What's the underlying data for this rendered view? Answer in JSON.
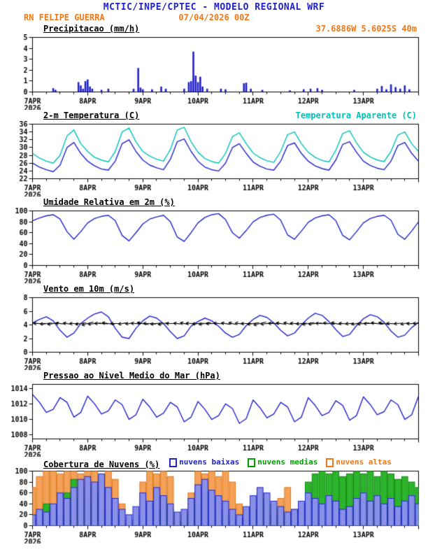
{
  "header": {
    "title": "MCTIC/INPE/CPTEC - MODELO REGIONAL WRF",
    "station": "RN FELIPE GUERRA",
    "datetime": "07/04/2026 00Z",
    "location": "37.6886W 5.6025S 40m"
  },
  "colors": {
    "title_blue": "#2020cc",
    "orange": "#f07818",
    "blue": "#2222cc",
    "cyan": "#00c3b6",
    "green": "#00a000",
    "cloud_low_fill": "#8890e8",
    "cloud_low_edge": "#2228c8",
    "cloud_mid_fill": "#2db42d",
    "cloud_mid_edge": "#0a8a0a",
    "cloud_high_fill": "#f4a259",
    "cloud_high_edge": "#e07818"
  },
  "x_axis": {
    "hours_total": 168,
    "minor_tick_hours": 6,
    "day_labels": [
      "7APR",
      "8APR",
      "9APR",
      "10APR",
      "11APR",
      "12APR",
      "13APR"
    ],
    "year_label": "2026"
  },
  "chart_data": [
    {
      "id": "precip",
      "type": "bar",
      "title": "Precipitacao (mm/h)",
      "ylim": [
        0,
        5
      ],
      "yticks": [
        0,
        1,
        2,
        3,
        4,
        5
      ],
      "points": [
        [
          9,
          0.35
        ],
        [
          10,
          0.2
        ],
        [
          20,
          0.9
        ],
        [
          21,
          0.6
        ],
        [
          22,
          0.3
        ],
        [
          23,
          1.0
        ],
        [
          24,
          1.15
        ],
        [
          25,
          0.5
        ],
        [
          26,
          0.3
        ],
        [
          30,
          0.2
        ],
        [
          33,
          0.3
        ],
        [
          44,
          0.3
        ],
        [
          46,
          2.2
        ],
        [
          47,
          0.4
        ],
        [
          48,
          0.25
        ],
        [
          52,
          0.25
        ],
        [
          56,
          0.5
        ],
        [
          58,
          0.3
        ],
        [
          66,
          0.3
        ],
        [
          68,
          0.9
        ],
        [
          69,
          1.0
        ],
        [
          70,
          3.7
        ],
        [
          71,
          1.5
        ],
        [
          72,
          0.9
        ],
        [
          73,
          1.4
        ],
        [
          74,
          0.5
        ],
        [
          76,
          0.3
        ],
        [
          82,
          0.3
        ],
        [
          84,
          0.25
        ],
        [
          92,
          0.8
        ],
        [
          93,
          0.85
        ],
        [
          95,
          0.3
        ],
        [
          100,
          0.2
        ],
        [
          112,
          0.15
        ],
        [
          118,
          0.25
        ],
        [
          121,
          0.3
        ],
        [
          124,
          0.35
        ],
        [
          126,
          0.2
        ],
        [
          140,
          0.2
        ],
        [
          150,
          0.3
        ],
        [
          152,
          0.55
        ],
        [
          154,
          0.25
        ],
        [
          156,
          0.7
        ],
        [
          158,
          0.45
        ],
        [
          160,
          0.3
        ],
        [
          162,
          0.6
        ],
        [
          164,
          0.25
        ]
      ]
    },
    {
      "id": "temp",
      "type": "line",
      "title": "2-m Temperatura (C)",
      "legend_right": "Temperatura Aparente (C)",
      "ylim": [
        22,
        36
      ],
      "yticks": [
        22,
        24,
        26,
        28,
        30,
        32,
        34,
        36
      ],
      "step_hours": 3,
      "series": [
        {
          "name": "Temperatura Aparente (C)",
          "color_key": "cyan",
          "values": [
            28.5,
            27.3,
            26.5,
            26,
            28,
            33,
            34.5,
            31,
            29,
            27.5,
            26.8,
            26.3,
            29,
            34,
            35,
            31.5,
            29,
            27.8,
            27,
            26.5,
            29.5,
            34.5,
            35.2,
            31.5,
            28.8,
            27.2,
            26.4,
            26,
            28.5,
            32.8,
            33.8,
            31,
            28.6,
            27.4,
            26.6,
            26.2,
            29,
            33.3,
            34,
            31,
            28.8,
            27.5,
            26.7,
            26.3,
            29.3,
            33.6,
            34.3,
            31.2,
            28.8,
            27.6,
            26.8,
            26.4,
            29,
            33.2,
            34,
            31,
            29
          ]
        },
        {
          "name": "2-m Temperatura (C)",
          "color_key": "blue",
          "values": [
            26,
            25,
            24.3,
            23.8,
            25.5,
            30,
            31.3,
            28.5,
            26.5,
            25.3,
            24.5,
            24.2,
            26.5,
            31,
            32,
            29,
            26.8,
            25.5,
            24.8,
            24.3,
            27,
            31.5,
            32.2,
            29,
            26.5,
            25,
            24.3,
            24,
            26,
            30,
            31,
            28.5,
            26.3,
            25.2,
            24.5,
            24.2,
            26.5,
            30.5,
            31.2,
            28.5,
            26.5,
            25.3,
            24.6,
            24.2,
            26.8,
            30.8,
            31.5,
            28.8,
            26.5,
            25.4,
            24.7,
            24.3,
            26.5,
            30.5,
            31.3,
            28.5,
            26.5
          ]
        }
      ]
    },
    {
      "id": "rh",
      "type": "line",
      "title": "Umidade Relativa em 2m (%)",
      "ylim": [
        0,
        100
      ],
      "yticks": [
        0,
        20,
        40,
        60,
        80,
        100
      ],
      "step_hours": 3,
      "series": [
        {
          "name": "Umidade Relativa",
          "color_key": "blue",
          "values": [
            82,
            87,
            91,
            93,
            85,
            62,
            48,
            62,
            78,
            86,
            90,
            92,
            82,
            55,
            45,
            60,
            76,
            85,
            89,
            92,
            80,
            52,
            44,
            60,
            78,
            88,
            93,
            95,
            84,
            60,
            50,
            64,
            80,
            88,
            92,
            94,
            83,
            56,
            48,
            63,
            79,
            87,
            91,
            93,
            82,
            55,
            47,
            62,
            78,
            86,
            90,
            92,
            83,
            57,
            48,
            63,
            80
          ]
        }
      ]
    },
    {
      "id": "wind",
      "type": "line+arrows",
      "title": "Vento em 10m (m/s)",
      "ylim": [
        0,
        8
      ],
      "yticks": [
        0,
        2,
        4,
        6,
        8
      ],
      "step_hours": 3,
      "arrow_y": 4.2,
      "arrow_dirs": [
        182,
        178,
        185,
        190,
        175,
        170,
        180,
        188,
        195,
        185,
        178,
        172,
        180,
        190,
        185,
        175,
        170,
        178,
        186,
        192,
        180,
        174,
        168,
        176,
        184,
        190,
        182,
        176,
        170,
        165,
        172,
        180,
        188,
        194,
        186,
        178,
        172,
        168,
        175,
        183,
        190,
        185,
        179,
        173,
        169,
        176,
        184,
        191,
        186,
        180,
        174,
        170,
        177,
        185,
        192,
        183,
        178
      ],
      "series": [
        {
          "name": "Vento 10m",
          "color_key": "blue",
          "values": [
            4.3,
            4.8,
            5.2,
            4.6,
            3.2,
            2.2,
            2.8,
            4.2,
            5.0,
            5.6,
            5.9,
            5.2,
            3.5,
            2.2,
            2.0,
            3.5,
            4.6,
            5.3,
            5.0,
            4.2,
            3.0,
            2.0,
            2.4,
            3.8,
            4.5,
            5.0,
            4.6,
            3.8,
            2.8,
            2.2,
            2.6,
            3.9,
            4.8,
            5.4,
            5.1,
            4.3,
            3.2,
            2.4,
            2.8,
            4.0,
            5.0,
            5.7,
            5.4,
            4.5,
            3.3,
            2.3,
            2.6,
            3.9,
            4.9,
            5.5,
            5.2,
            4.4,
            3.1,
            2.2,
            2.5,
            3.6,
            4.4
          ]
        }
      ]
    },
    {
      "id": "pressure",
      "type": "line",
      "title": "Pressao ao Nivel Medio do Mar (hPa)",
      "ylim": [
        1007.5,
        1014.5
      ],
      "yticks": [
        1008,
        1010,
        1012,
        1014
      ],
      "step_hours": 3,
      "series": [
        {
          "name": "Pressao",
          "color_key": "blue",
          "values": [
            1013.2,
            1012.2,
            1010.9,
            1011.3,
            1012.8,
            1012.2,
            1010.3,
            1010.9,
            1013.0,
            1012.0,
            1010.7,
            1011.1,
            1012.5,
            1011.9,
            1010.0,
            1010.6,
            1012.6,
            1011.6,
            1010.3,
            1010.8,
            1012.2,
            1011.6,
            1009.7,
            1010.3,
            1012.3,
            1011.3,
            1010.0,
            1010.5,
            1012.0,
            1011.4,
            1009.5,
            1010.1,
            1012.5,
            1011.5,
            1010.2,
            1010.7,
            1012.2,
            1011.6,
            1009.7,
            1010.3,
            1012.8,
            1011.8,
            1010.5,
            1010.9,
            1012.4,
            1011.8,
            1009.9,
            1010.5,
            1012.9,
            1011.9,
            1010.6,
            1011.0,
            1012.5,
            1011.9,
            1010.0,
            1010.6,
            1013.0
          ]
        }
      ]
    },
    {
      "id": "clouds",
      "type": "bars3",
      "title": "Cobertura de Nuvens (%)",
      "ylim": [
        0,
        100
      ],
      "yticks": [
        0,
        20,
        40,
        60,
        80,
        100
      ],
      "step_hours": 3,
      "legend": [
        {
          "label": "nuvens baixas",
          "color_key": "blue"
        },
        {
          "label": "nuvens medias",
          "color_key": "green"
        },
        {
          "label": "nuvens altas",
          "color_key": "orange"
        }
      ],
      "series": [
        {
          "name": "nuvens altas",
          "fill_key": "cloud_high_fill",
          "edge_key": "cloud_high_edge",
          "values": [
            70,
            90,
            100,
            100,
            95,
            100,
            100,
            95,
            100,
            100,
            90,
            100,
            85,
            40,
            10,
            0,
            80,
            100,
            95,
            100,
            90,
            20,
            0,
            60,
            100,
            95,
            100,
            90,
            100,
            80,
            40,
            10,
            30,
            60,
            20,
            0,
            50,
            70,
            30,
            0,
            0,
            10,
            5,
            0,
            5,
            10,
            0,
            5,
            15,
            30,
            45,
            25,
            35,
            20,
            30,
            20,
            10
          ]
        },
        {
          "name": "nuvens medias",
          "fill_key": "cloud_mid_fill",
          "edge_key": "cloud_mid_edge",
          "values": [
            10,
            20,
            40,
            30,
            20,
            60,
            85,
            50,
            70,
            40,
            60,
            30,
            20,
            10,
            5,
            10,
            20,
            40,
            30,
            50,
            30,
            10,
            5,
            20,
            40,
            60,
            50,
            30,
            20,
            10,
            5,
            15,
            30,
            50,
            40,
            20,
            30,
            20,
            10,
            40,
            80,
            95,
            100,
            95,
            100,
            90,
            95,
            100,
            95,
            100,
            90,
            100,
            95,
            85,
            90,
            80,
            70
          ]
        },
        {
          "name": "nuvens baixas",
          "fill_key": "cloud_low_fill",
          "edge_key": "cloud_low_edge",
          "values": [
            20,
            30,
            25,
            40,
            60,
            50,
            70,
            85,
            90,
            80,
            95,
            70,
            50,
            30,
            20,
            35,
            60,
            45,
            70,
            55,
            40,
            25,
            30,
            50,
            75,
            85,
            65,
            55,
            45,
            30,
            20,
            35,
            55,
            70,
            60,
            45,
            35,
            25,
            30,
            45,
            60,
            50,
            40,
            55,
            45,
            30,
            35,
            50,
            60,
            45,
            55,
            40,
            50,
            35,
            45,
            55,
            40
          ]
        }
      ]
    }
  ]
}
